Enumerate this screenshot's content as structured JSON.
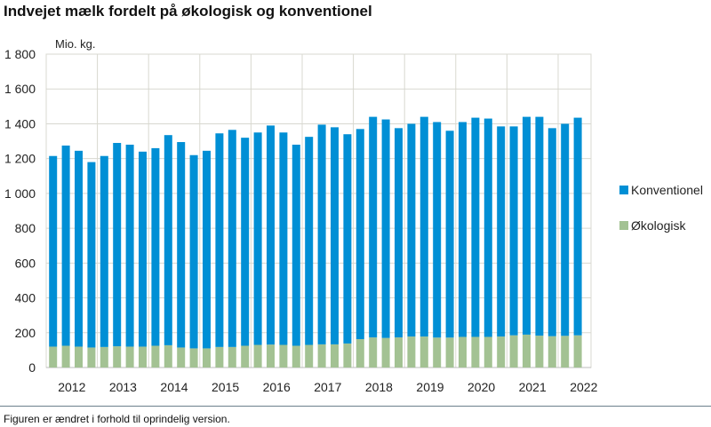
{
  "chart_data": {
    "type": "bar",
    "stacked": true,
    "title": "Indvejet mælk fordelt på økologisk og konventionel",
    "ylabel": "Mio. kg.",
    "ylim": [
      0,
      1800
    ],
    "yticks": [
      0,
      200,
      400,
      600,
      800,
      1000,
      1200,
      1400,
      1600,
      1800
    ],
    "ytick_labels": [
      "0",
      "200",
      "400",
      "600",
      "800",
      "1 000",
      "1 200",
      "1 400",
      "1 600",
      "1 800"
    ],
    "grid": true,
    "legend": "right",
    "year_labels": [
      "2012",
      "2013",
      "2014",
      "2015",
      "2016",
      "2017",
      "2018",
      "2019",
      "2020",
      "2021",
      "2022"
    ],
    "categories": [
      "2012 K1",
      "2012 K2",
      "2012 K3",
      "2012 K4",
      "2013 K1",
      "2013 K2",
      "2013 K3",
      "2013 K4",
      "2014 K1",
      "2014 K2",
      "2014 K3",
      "2014 K4",
      "2015 K1",
      "2015 K2",
      "2015 K3",
      "2015 K4",
      "2016 K1",
      "2016 K2",
      "2016 K3",
      "2016 K4",
      "2017 K1",
      "2017 K2",
      "2017 K3",
      "2017 K4",
      "2018 K1",
      "2018 K2",
      "2018 K3",
      "2018 K4",
      "2019 K1",
      "2019 K2",
      "2019 K3",
      "2019 K4",
      "2020 K1",
      "2020 K2",
      "2020 K3",
      "2020 K4",
      "2021 K1",
      "2021 K2",
      "2021 K3",
      "2021 K4",
      "2022 K1",
      "2022 K2"
    ],
    "series": [
      {
        "name": "Økologisk",
        "color": "#a3c293",
        "values": [
          120,
          125,
          120,
          115,
          118,
          122,
          120,
          120,
          125,
          128,
          115,
          110,
          110,
          118,
          118,
          125,
          130,
          132,
          130,
          125,
          130,
          133,
          133,
          138,
          163,
          173,
          170,
          173,
          178,
          178,
          172,
          172,
          176,
          176,
          176,
          178,
          185,
          189,
          183,
          180,
          182,
          185
        ]
      },
      {
        "name": "Konventionel",
        "color": "#008fd5",
        "values": [
          1095,
          1150,
          1125,
          1065,
          1097,
          1168,
          1160,
          1120,
          1135,
          1207,
          1180,
          1110,
          1135,
          1227,
          1247,
          1195,
          1220,
          1258,
          1220,
          1155,
          1195,
          1262,
          1247,
          1202,
          1207,
          1267,
          1255,
          1202,
          1222,
          1262,
          1238,
          1188,
          1234,
          1259,
          1254,
          1207,
          1200,
          1251,
          1257,
          1195,
          1218,
          1250
        ]
      }
    ]
  },
  "footnote": "Figuren er ændret i forhold til oprindelig version."
}
